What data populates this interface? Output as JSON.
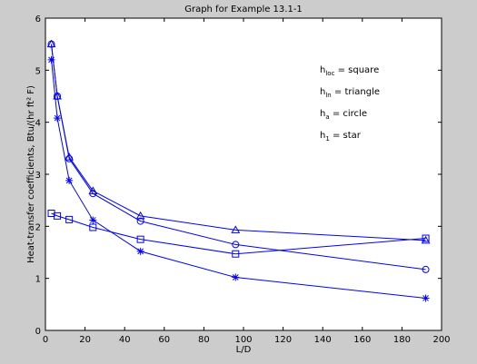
{
  "chart_data": {
    "type": "line",
    "title": "Graph for Example 13.1-1",
    "xlabel": "L/D",
    "ylabel": "Heat-transfer coefficients, Btu/(hr ft² F)",
    "xlim": [
      0,
      200
    ],
    "ylim": [
      0,
      6
    ],
    "xticks": [
      "0",
      "20",
      "40",
      "60",
      "80",
      "100",
      "120",
      "140",
      "160",
      "180",
      "200"
    ],
    "yticks": [
      "0",
      "1",
      "2",
      "3",
      "4",
      "5",
      "6"
    ],
    "grid": false,
    "legend_position": "top-right",
    "legend": [
      {
        "base": "h",
        "sub": "loc",
        "text": " = square"
      },
      {
        "base": "h",
        "sub": "ln",
        "text": " = triangle"
      },
      {
        "base": "h",
        "sub": "a",
        "text": " = circle"
      },
      {
        "base": "h",
        "sub": "1",
        "text": " = star"
      }
    ],
    "line_color": "#0000ff",
    "x": [
      3,
      6,
      12,
      24,
      48,
      96,
      192
    ],
    "series": [
      {
        "marker": "square",
        "values": [
          2.25,
          2.2,
          2.13,
          1.98,
          1.75,
          1.47,
          1.77
        ]
      },
      {
        "marker": "triangle",
        "values": [
          5.5,
          4.5,
          3.33,
          2.68,
          2.2,
          1.93,
          1.73
        ]
      },
      {
        "marker": "circle",
        "values": [
          5.5,
          4.5,
          3.3,
          2.63,
          2.1,
          1.65,
          1.17
        ]
      },
      {
        "marker": "star",
        "values": [
          5.2,
          4.08,
          2.88,
          2.12,
          1.52,
          1.02,
          0.62
        ]
      }
    ]
  }
}
